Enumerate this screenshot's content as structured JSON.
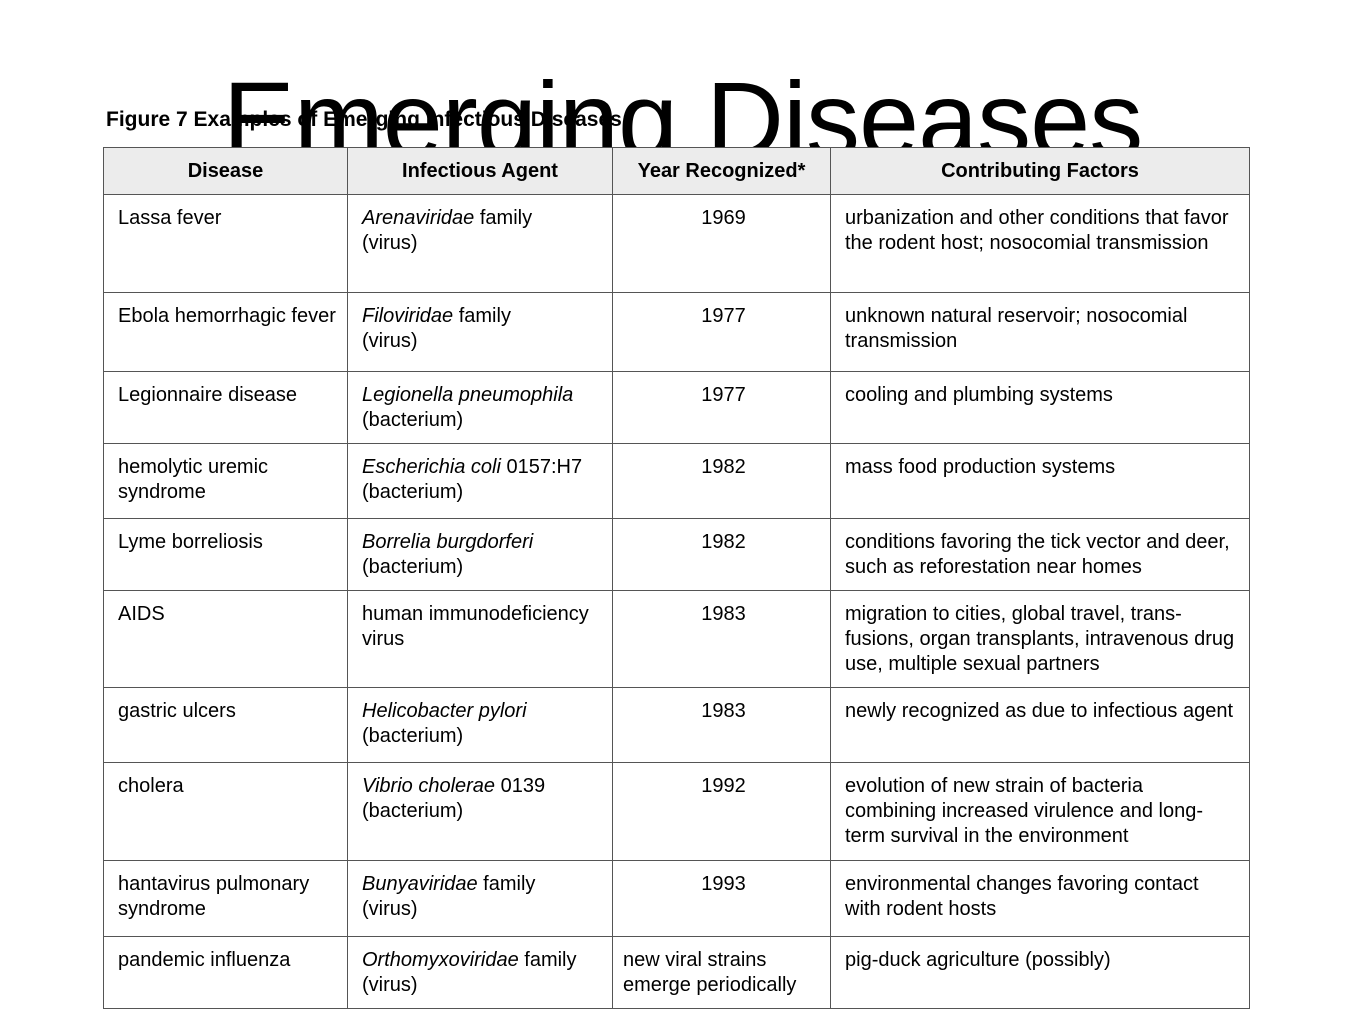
{
  "title": "Emerging Diseases",
  "caption": "Figure 7 Examples of Emerging Infectious Diseases",
  "table": {
    "headers": [
      "Disease",
      "Infectious Agent",
      "Year Recognized*",
      "Contributing Factors"
    ],
    "rows": [
      {
        "disease": "Lassa fever",
        "agent_italic": "Arenaviridae",
        "agent_rest": " family",
        "agent_type": "(virus)",
        "year": "1969",
        "factors": "urbanization and other conditions that favor the rodent host; nosocomial transmission"
      },
      {
        "disease": "Ebola hemorrhagic fever",
        "agent_italic": "Filoviridae",
        "agent_rest": " family",
        "agent_type": "(virus)",
        "year": "1977",
        "factors": "unknown natural reservoir; nosocomial transmission"
      },
      {
        "disease": "Legionnaire disease",
        "agent_italic": "Legionella pneumophila",
        "agent_rest": "",
        "agent_type": "(bacterium)",
        "year": "1977",
        "factors": "cooling and plumbing systems"
      },
      {
        "disease": "hemolytic uremic syndrome",
        "agent_italic": "Escherichia coli",
        "agent_rest": " 0157:H7",
        "agent_type": "(bacterium)",
        "year": "1982",
        "factors": "mass food production systems"
      },
      {
        "disease": "Lyme borreliosis",
        "agent_italic": "Borrelia burgdorferi",
        "agent_rest": "",
        "agent_type": "(bacterium)",
        "year": "1982",
        "factors": "conditions favoring the tick vector and deer, such as reforestation near homes"
      },
      {
        "disease": "AIDS",
        "agent_italic": "",
        "agent_rest": "human immunodeficiency",
        "agent_type": "virus",
        "year": "1983",
        "factors": "migration to cities, global travel, trans- fusions, organ transplants, intravenous drug use, multiple sexual partners"
      },
      {
        "disease": "gastric ulcers",
        "agent_italic": "Helicobacter pylori",
        "agent_rest": "",
        "agent_type": "(bacterium)",
        "year": "1983",
        "factors": "newly recognized as due to infectious agent"
      },
      {
        "disease": "cholera",
        "agent_italic": "Vibrio cholerae",
        "agent_rest": " 0139",
        "agent_type": "(bacterium)",
        "year": "1992",
        "factors": "evolution of new strain of bacteria combining increased virulence and long-term survival in the environment"
      },
      {
        "disease": "hantavirus pulmonary syndrome",
        "agent_italic": "Bunyaviridae",
        "agent_rest": " family",
        "agent_type": "(virus)",
        "year": "1993",
        "factors": "environmental changes favoring contact with rodent hosts"
      },
      {
        "disease": "pandemic influenza",
        "agent_italic": "Orthomyxoviridae",
        "agent_rest": " family",
        "agent_type": "(virus)",
        "year": "new viral strains emerge periodically",
        "factors": "pig-duck agriculture (possibly)"
      }
    ]
  }
}
